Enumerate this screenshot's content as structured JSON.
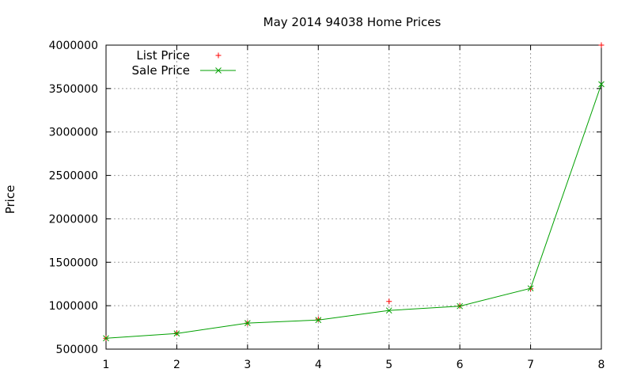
{
  "chart_data": {
    "type": "line",
    "title": "May 2014 94038 Home Prices",
    "xlabel": "",
    "ylabel": "Price",
    "xlim": [
      1,
      8
    ],
    "ylim": [
      500000,
      4000000
    ],
    "x_ticks": [
      "1",
      "2",
      "3",
      "4",
      "5",
      "6",
      "7",
      "8"
    ],
    "y_ticks": [
      "500000",
      "1000000",
      "1500000",
      "2000000",
      "2500000",
      "3000000",
      "3500000",
      "4000000"
    ],
    "grid": true,
    "legend_position": "top-left",
    "x": [
      1,
      2,
      3,
      4,
      5,
      6,
      7,
      8
    ],
    "series": [
      {
        "name": "List Price",
        "style": "points",
        "marker": "plus",
        "color": "#ff0000",
        "values": [
          625000,
          685000,
          800000,
          845000,
          1049000,
          998000,
          1195000,
          4000000
        ]
      },
      {
        "name": "Sale Price",
        "style": "linespoints",
        "marker": "cross",
        "color": "#00a000",
        "values": [
          625000,
          680000,
          800000,
          835000,
          945000,
          995000,
          1200000,
          3550000
        ]
      }
    ]
  }
}
